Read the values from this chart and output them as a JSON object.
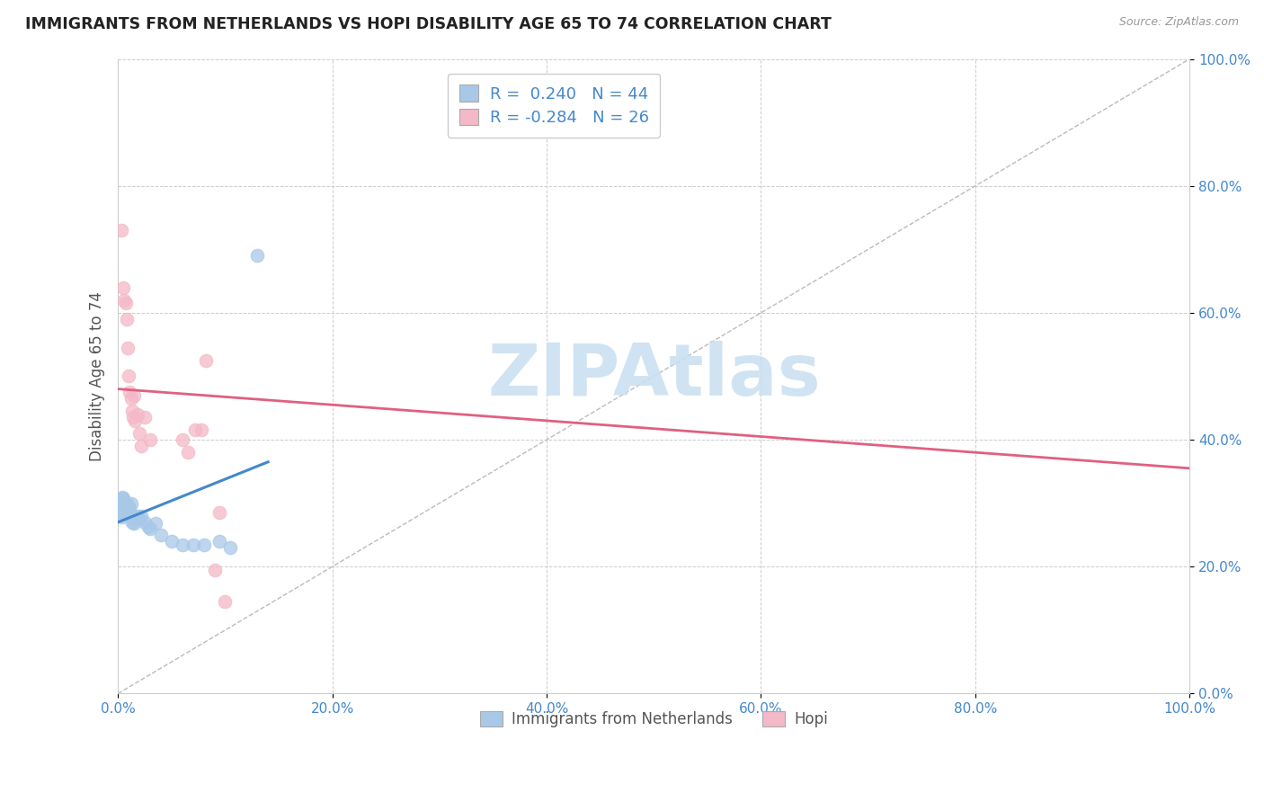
{
  "title": "IMMIGRANTS FROM NETHERLANDS VS HOPI DISABILITY AGE 65 TO 74 CORRELATION CHART",
  "source": "Source: ZipAtlas.com",
  "ylabel": "Disability Age 65 to 74",
  "xlim": [
    0,
    1.0
  ],
  "ylim": [
    0,
    1.0
  ],
  "xticks": [
    0.0,
    0.2,
    0.4,
    0.6,
    0.8,
    1.0
  ],
  "yticks": [
    0.0,
    0.2,
    0.4,
    0.6,
    0.8,
    1.0
  ],
  "xticklabels": [
    "0.0%",
    "20.0%",
    "40.0%",
    "60.0%",
    "80.0%",
    "100.0%"
  ],
  "yticklabels": [
    "0.0%",
    "20.0%",
    "40.0%",
    "60.0%",
    "80.0%",
    "100.0%"
  ],
  "blue_color": "#a8c8e8",
  "pink_color": "#f4b8c8",
  "trendline_color_blue": "#4488cc",
  "trendline_color_pink": "#e06080",
  "tick_label_color": "#4488cc",
  "watermark_color": "#c8dff0",
  "scatter_blue_x": [
    0.002,
    0.002,
    0.003,
    0.003,
    0.003,
    0.004,
    0.004,
    0.004,
    0.005,
    0.005,
    0.005,
    0.006,
    0.006,
    0.006,
    0.007,
    0.007,
    0.008,
    0.008,
    0.008,
    0.009,
    0.009,
    0.01,
    0.01,
    0.011,
    0.012,
    0.013,
    0.014,
    0.015,
    0.016,
    0.018,
    0.02,
    0.022,
    0.025,
    0.028,
    0.03,
    0.035,
    0.04,
    0.05,
    0.06,
    0.07,
    0.08,
    0.095,
    0.105,
    0.13
  ],
  "scatter_blue_y": [
    0.285,
    0.29,
    0.295,
    0.3,
    0.305,
    0.278,
    0.282,
    0.31,
    0.295,
    0.3,
    0.308,
    0.288,
    0.295,
    0.302,
    0.285,
    0.295,
    0.29,
    0.295,
    0.3,
    0.285,
    0.292,
    0.285,
    0.295,
    0.29,
    0.3,
    0.27,
    0.28,
    0.268,
    0.275,
    0.28,
    0.275,
    0.28,
    0.27,
    0.262,
    0.26,
    0.268,
    0.25,
    0.24,
    0.235,
    0.235,
    0.235,
    0.24,
    0.23,
    0.69
  ],
  "scatter_pink_x": [
    0.003,
    0.005,
    0.006,
    0.007,
    0.008,
    0.009,
    0.01,
    0.011,
    0.012,
    0.013,
    0.014,
    0.015,
    0.016,
    0.018,
    0.02,
    0.022,
    0.025,
    0.03,
    0.06,
    0.065,
    0.072,
    0.078,
    0.082,
    0.09,
    0.095,
    0.1
  ],
  "scatter_pink_y": [
    0.73,
    0.64,
    0.62,
    0.615,
    0.59,
    0.545,
    0.5,
    0.475,
    0.465,
    0.445,
    0.435,
    0.47,
    0.43,
    0.44,
    0.41,
    0.39,
    0.435,
    0.4,
    0.4,
    0.38,
    0.415,
    0.415,
    0.525,
    0.195,
    0.285,
    0.145
  ],
  "blue_trend_x": [
    0.0,
    0.14
  ],
  "blue_trend_y": [
    0.27,
    0.365
  ],
  "pink_trend_x": [
    0.0,
    1.0
  ],
  "pink_trend_y": [
    0.48,
    0.355
  ],
  "legend_label1": "R =  0.240   N = 44",
  "legend_label2": "R = -0.284   N = 26",
  "bottom_label1": "Immigrants from Netherlands",
  "bottom_label2": "Hopi"
}
